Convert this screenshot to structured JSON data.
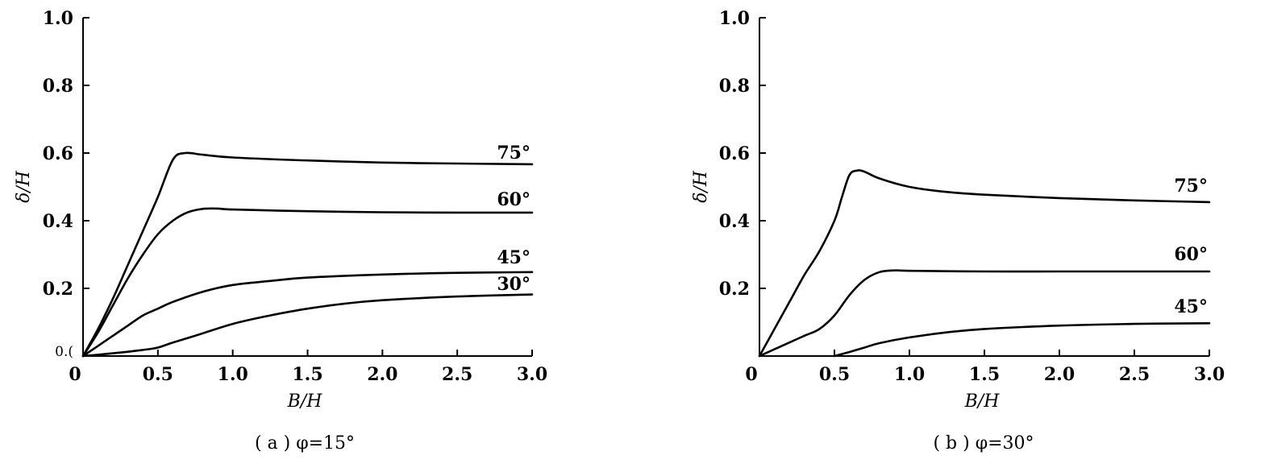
{
  "chart_data": [
    {
      "type": "line",
      "caption": "( a ) φ=15°",
      "xlabel": "B/H",
      "ylabel": "δ/H",
      "xlim": [
        0,
        3.0
      ],
      "ylim": [
        0,
        1.0
      ],
      "x_ticks": [
        "0",
        "0.5",
        "1.0",
        "1.5",
        "2.0",
        "2.5",
        "3.0"
      ],
      "y_ticks": [
        "0.(",
        "0.2",
        "0.4",
        "0.6",
        "0.8",
        "1.0"
      ],
      "grid": false,
      "series": [
        {
          "name": "75°",
          "points": [
            [
              0,
              0
            ],
            [
              0.1,
              0.08
            ],
            [
              0.2,
              0.17
            ],
            [
              0.3,
              0.27
            ],
            [
              0.4,
              0.37
            ],
            [
              0.5,
              0.47
            ],
            [
              0.6,
              0.58
            ],
            [
              0.68,
              0.6
            ],
            [
              0.8,
              0.595
            ],
            [
              1.0,
              0.587
            ],
            [
              1.5,
              0.578
            ],
            [
              2.0,
              0.572
            ],
            [
              2.5,
              0.569
            ],
            [
              3.0,
              0.567
            ]
          ]
        },
        {
          "name": "60°",
          "points": [
            [
              0,
              0
            ],
            [
              0.1,
              0.07
            ],
            [
              0.2,
              0.15
            ],
            [
              0.3,
              0.23
            ],
            [
              0.4,
              0.3
            ],
            [
              0.5,
              0.36
            ],
            [
              0.6,
              0.4
            ],
            [
              0.7,
              0.425
            ],
            [
              0.8,
              0.435
            ],
            [
              0.9,
              0.436
            ],
            [
              1.0,
              0.433
            ],
            [
              1.5,
              0.428
            ],
            [
              2.0,
              0.425
            ],
            [
              2.5,
              0.424
            ],
            [
              3.0,
              0.424
            ]
          ]
        },
        {
          "name": "45°",
          "points": [
            [
              0,
              0
            ],
            [
              0.1,
              0.03
            ],
            [
              0.2,
              0.06
            ],
            [
              0.3,
              0.09
            ],
            [
              0.4,
              0.12
            ],
            [
              0.5,
              0.14
            ],
            [
              0.6,
              0.16
            ],
            [
              0.8,
              0.19
            ],
            [
              1.0,
              0.21
            ],
            [
              1.25,
              0.222
            ],
            [
              1.5,
              0.232
            ],
            [
              2.0,
              0.241
            ],
            [
              2.5,
              0.246
            ],
            [
              3.0,
              0.248
            ]
          ]
        },
        {
          "name": "30°",
          "points": [
            [
              0,
              0
            ],
            [
              0.2,
              0.008
            ],
            [
              0.4,
              0.018
            ],
            [
              0.5,
              0.025
            ],
            [
              0.6,
              0.04
            ],
            [
              0.75,
              0.06
            ],
            [
              1.0,
              0.095
            ],
            [
              1.25,
              0.12
            ],
            [
              1.5,
              0.14
            ],
            [
              1.75,
              0.155
            ],
            [
              2.0,
              0.165
            ],
            [
              2.5,
              0.176
            ],
            [
              3.0,
              0.182
            ]
          ]
        }
      ]
    },
    {
      "type": "line",
      "caption": "( b ) φ=30°",
      "xlabel": "B/H",
      "ylabel": "δ/H",
      "xlim": [
        0,
        3.0
      ],
      "ylim": [
        0,
        1.0
      ],
      "x_ticks": [
        "0",
        "0.5",
        "1.0",
        "1.5",
        "2.0",
        "2.5",
        "3.0"
      ],
      "y_ticks": [
        "0.2",
        "0.4",
        "0.6",
        "0.8",
        "1.0"
      ],
      "grid": false,
      "series": [
        {
          "name": "75°",
          "points": [
            [
              0,
              0
            ],
            [
              0.1,
              0.08
            ],
            [
              0.2,
              0.16
            ],
            [
              0.3,
              0.24
            ],
            [
              0.4,
              0.31
            ],
            [
              0.5,
              0.4
            ],
            [
              0.55,
              0.47
            ],
            [
              0.6,
              0.535
            ],
            [
              0.65,
              0.548
            ],
            [
              0.7,
              0.545
            ],
            [
              0.8,
              0.525
            ],
            [
              1.0,
              0.5
            ],
            [
              1.25,
              0.485
            ],
            [
              1.5,
              0.477
            ],
            [
              2.0,
              0.467
            ],
            [
              2.5,
              0.46
            ],
            [
              3.0,
              0.455
            ]
          ]
        },
        {
          "name": "60°",
          "points": [
            [
              0,
              0
            ],
            [
              0.1,
              0.02
            ],
            [
              0.2,
              0.04
            ],
            [
              0.3,
              0.06
            ],
            [
              0.4,
              0.08
            ],
            [
              0.5,
              0.12
            ],
            [
              0.6,
              0.18
            ],
            [
              0.7,
              0.225
            ],
            [
              0.8,
              0.248
            ],
            [
              0.9,
              0.253
            ],
            [
              1.0,
              0.252
            ],
            [
              1.5,
              0.25
            ],
            [
              2.0,
              0.25
            ],
            [
              2.5,
              0.25
            ],
            [
              3.0,
              0.25
            ]
          ]
        },
        {
          "name": "45°",
          "points": [
            [
              0.5,
              0
            ],
            [
              0.6,
              0.012
            ],
            [
              0.7,
              0.025
            ],
            [
              0.8,
              0.038
            ],
            [
              1.0,
              0.055
            ],
            [
              1.25,
              0.07
            ],
            [
              1.5,
              0.08
            ],
            [
              2.0,
              0.09
            ],
            [
              2.5,
              0.095
            ],
            [
              3.0,
              0.097
            ]
          ]
        }
      ]
    }
  ]
}
